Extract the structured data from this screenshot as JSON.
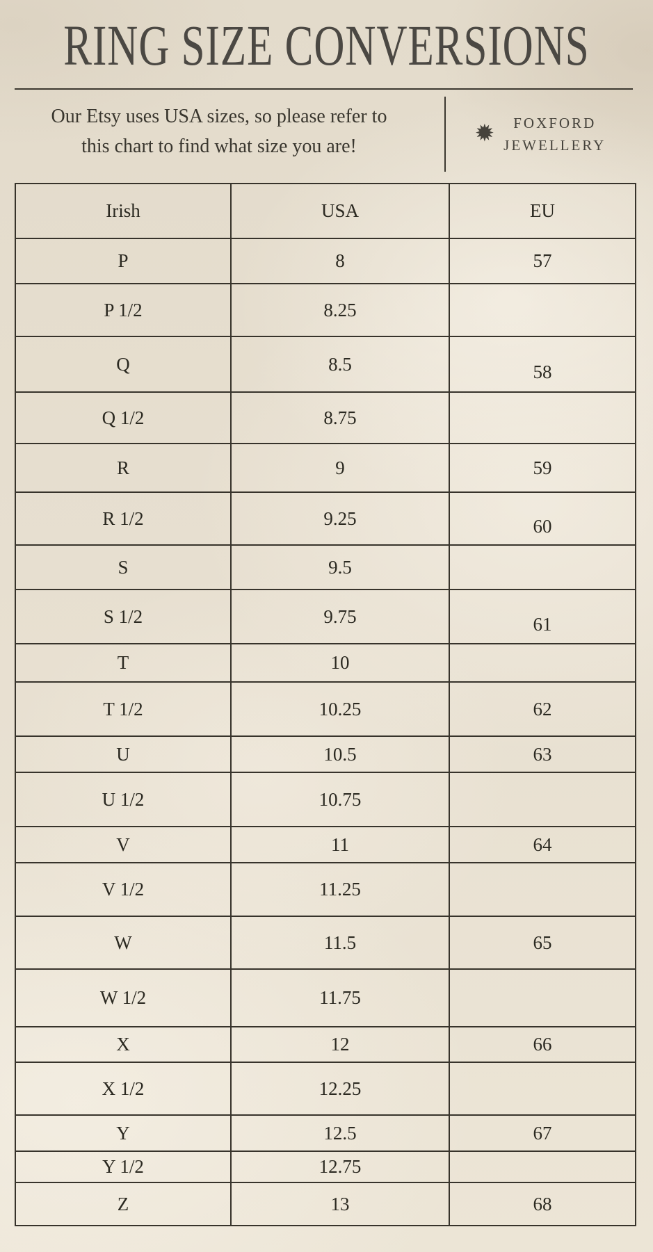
{
  "header": {
    "title": "RING SIZE CONVERSIONS",
    "subtitle_line1": "Our Etsy uses USA sizes, so please refer to",
    "subtitle_line2": "this chart to find what size you are!",
    "brand": {
      "star_icon": "✹",
      "name_line1": "FOXFORD",
      "name_line2": "JEWELLERY"
    }
  },
  "colors": {
    "background": "#e6ddcd",
    "background_light": "#f0e9da",
    "line": "#37332b",
    "title_text": "#4b4843",
    "body_text": "#2b2921"
  },
  "table": {
    "columns": [
      "Irish",
      "USA",
      "EU"
    ],
    "rows": [
      {
        "irish": "P",
        "usa": "8",
        "eu": "57"
      },
      {
        "irish": "P 1/2",
        "usa": "8.25",
        "eu": ""
      },
      {
        "irish": "Q",
        "usa": "8.5",
        "eu": "58"
      },
      {
        "irish": "Q 1/2",
        "usa": "8.75",
        "eu": ""
      },
      {
        "irish": "R",
        "usa": "9",
        "eu": "59"
      },
      {
        "irish": "R 1/2",
        "usa": "9.25",
        "eu": "60"
      },
      {
        "irish": "S",
        "usa": "9.5",
        "eu": ""
      },
      {
        "irish": "S 1/2",
        "usa": "9.75",
        "eu": "61"
      },
      {
        "irish": "T",
        "usa": "10",
        "eu": ""
      },
      {
        "irish": "T 1/2",
        "usa": "10.25",
        "eu": "62"
      },
      {
        "irish": "U",
        "usa": "10.5",
        "eu": "63"
      },
      {
        "irish": "U 1/2",
        "usa": "10.75",
        "eu": ""
      },
      {
        "irish": "V",
        "usa": "11",
        "eu": "64"
      },
      {
        "irish": "V 1/2",
        "usa": "11.25",
        "eu": ""
      },
      {
        "irish": "W",
        "usa": "11.5",
        "eu": "65"
      },
      {
        "irish": "W 1/2",
        "usa": "11.75",
        "eu": ""
      },
      {
        "irish": "X",
        "usa": "12",
        "eu": "66"
      },
      {
        "irish": "X 1/2",
        "usa": "12.25",
        "eu": ""
      },
      {
        "irish": "Y",
        "usa": "12.5",
        "eu": "67"
      },
      {
        "irish": "Y 1/2",
        "usa": "12.75",
        "eu": ""
      },
      {
        "irish": "Z",
        "usa": "13",
        "eu": "68"
      }
    ]
  }
}
